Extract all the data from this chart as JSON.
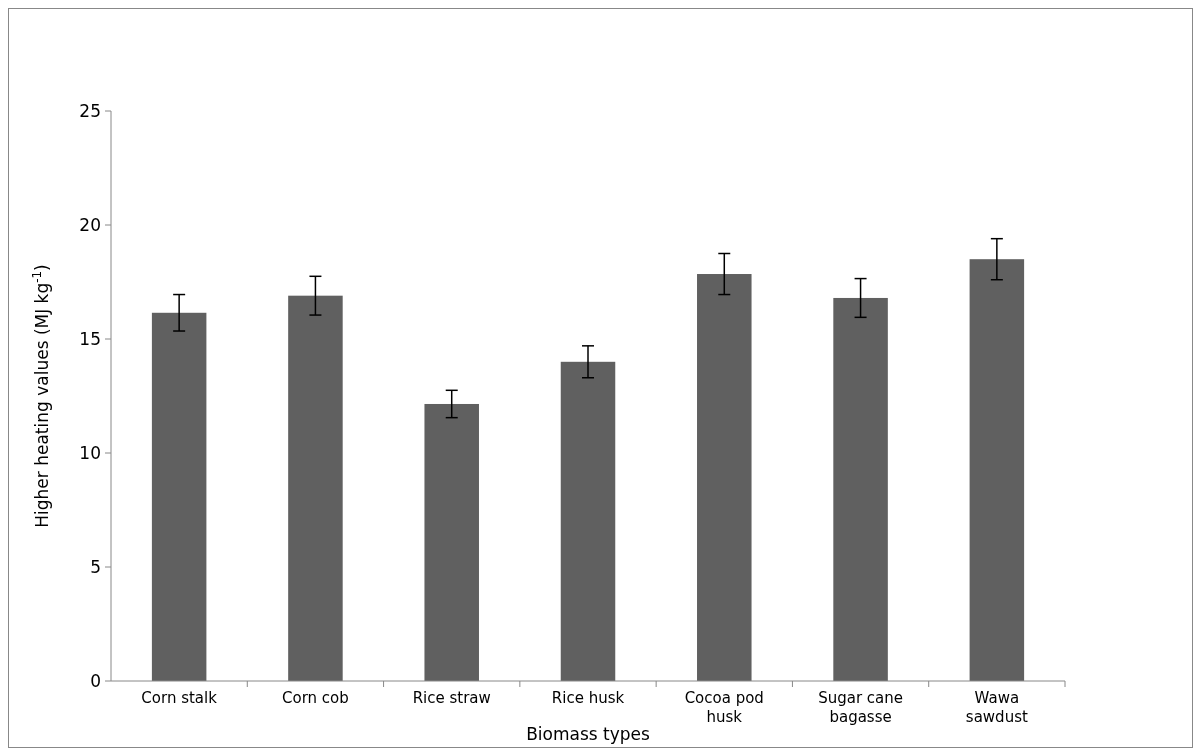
{
  "chart_data": {
    "type": "bar",
    "xlabel": "Biomass types",
    "ylabel": "Higher heating values (MJ kg$^{-1}$)",
    "categories": [
      "Corn stalk",
      "Corn cob",
      "Rice straw",
      "Rice husk",
      "Cocoa pod husk",
      "Sugar cane bagasse",
      "Wawa sawdust"
    ],
    "values": [
      16.15,
      16.9,
      12.15,
      14.0,
      17.85,
      16.8,
      18.5
    ],
    "errors": [
      0.8,
      0.85,
      0.6,
      0.7,
      0.9,
      0.85,
      0.9
    ],
    "color": "#606060",
    "ylim": [
      0,
      25
    ],
    "yticks": [
      0,
      5,
      10,
      15,
      20,
      25
    ]
  }
}
